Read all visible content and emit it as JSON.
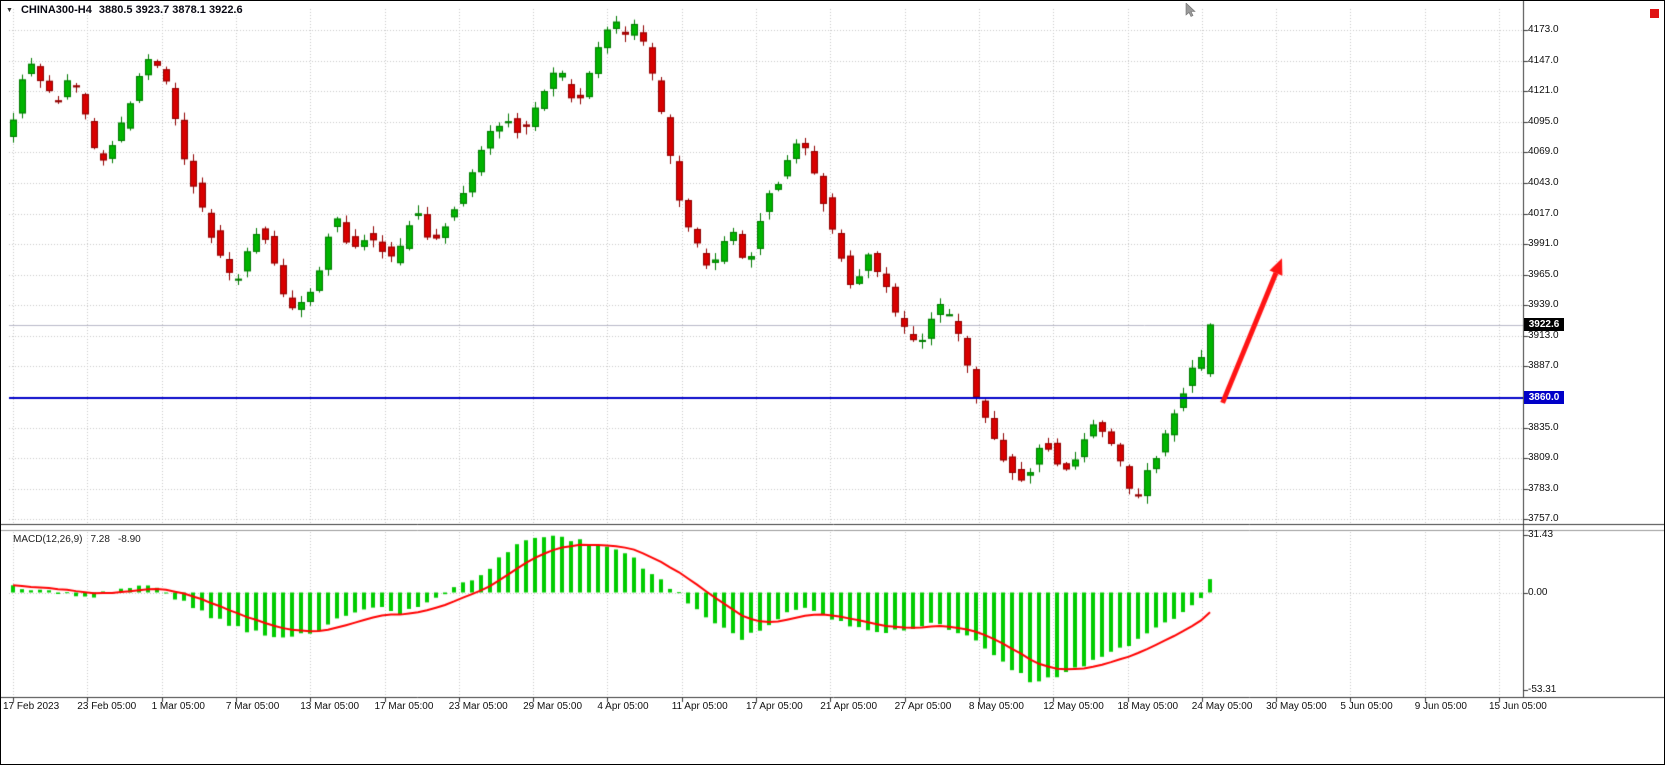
{
  "header": {
    "dropdown_icon": "▼",
    "symbol": "CHINA300-H4",
    "ohlc_text": "3880.5 3923.7 3878.1 3922.6"
  },
  "price_axis": {
    "current_price": "3922.6",
    "hline_price": "3860.0",
    "ticks": [
      "4173.0",
      "4147.0",
      "4121.0",
      "4095.0",
      "4069.0",
      "4043.0",
      "4017.0",
      "3991.0",
      "3965.0",
      "3939.0",
      "3913.0",
      "3887.0",
      "3835.0",
      "3809.0",
      "3783.0",
      "3757.0"
    ]
  },
  "time_axis": {
    "labels": [
      "17 Feb 2023",
      "23 Feb 05:00",
      "1 Mar 05:00",
      "7 Mar 05:00",
      "13 Mar 05:00",
      "17 Mar 05:00",
      "23 Mar 05:00",
      "29 Mar 05:00",
      "4 Apr 05:00",
      "11 Apr 05:00",
      "17 Apr 05:00",
      "21 Apr 05:00",
      "27 Apr 05:00",
      "8 May 05:00",
      "12 May 05:00",
      "18 May 05:00",
      "24 May 05:00",
      "30 May 05:00",
      "5 Jun 05:00",
      "9 Jun 05:00",
      "15 Jun 05:00"
    ]
  },
  "macd_label": {
    "name": "MACD(12,26,9)",
    "value": "7.28",
    "signal": "-8.90"
  },
  "macd_axis": {
    "ticks": [
      "31.43",
      "0.00",
      "-53.31"
    ]
  },
  "chart_data": {
    "type": "candlestick",
    "symbol": "CHINA300-H4",
    "timeframe": "H4",
    "price_range": [
      3753,
      4191
    ],
    "price_gridlines": [
      3757,
      3783,
      3809,
      3835,
      3861,
      3887,
      3913,
      3939,
      3965,
      3991,
      4017,
      4043,
      4069,
      4095,
      4121,
      4147,
      4173
    ],
    "num_candles": 134,
    "current_candle": {
      "open": 3880.5,
      "high": 3923.7,
      "low": 3878.1,
      "close": 3922.6
    },
    "last_price": 3922.6,
    "support_line": 3860.0,
    "noise_seed": 1337,
    "price_path": [
      [
        0,
        4085
      ],
      [
        2,
        4150
      ],
      [
        5,
        4110
      ],
      [
        7,
        4135
      ],
      [
        10,
        4060
      ],
      [
        12,
        4080
      ],
      [
        15,
        4148
      ],
      [
        17,
        4140
      ],
      [
        20,
        4050
      ],
      [
        23,
        3990
      ],
      [
        25,
        3958
      ],
      [
        28,
        4010
      ],
      [
        31,
        3935
      ],
      [
        34,
        3950
      ],
      [
        36,
        4020
      ],
      [
        38,
        3988
      ],
      [
        40,
        4000
      ],
      [
        43,
        3975
      ],
      [
        45,
        4025
      ],
      [
        47,
        3992
      ],
      [
        49,
        4015
      ],
      [
        51,
        4042
      ],
      [
        53,
        4078
      ],
      [
        55,
        4100
      ],
      [
        57,
        4086
      ],
      [
        59,
        4112
      ],
      [
        61,
        4140
      ],
      [
        63,
        4106
      ],
      [
        65,
        4150
      ],
      [
        67,
        4185
      ],
      [
        68,
        4168
      ],
      [
        70,
        4176
      ],
      [
        72,
        4120
      ],
      [
        74,
        4042
      ],
      [
        76,
        3996
      ],
      [
        78,
        3965
      ],
      [
        80,
        4006
      ],
      [
        82,
        3972
      ],
      [
        84,
        4030
      ],
      [
        86,
        4052
      ],
      [
        88,
        4086
      ],
      [
        90,
        4040
      ],
      [
        92,
        3992
      ],
      [
        94,
        3946
      ],
      [
        95,
        3986
      ],
      [
        97,
        3962
      ],
      [
        99,
        3924
      ],
      [
        101,
        3902
      ],
      [
        103,
        3940
      ],
      [
        105,
        3922
      ],
      [
        107,
        3872
      ],
      [
        109,
        3836
      ],
      [
        111,
        3802
      ],
      [
        113,
        3790
      ],
      [
        115,
        3826
      ],
      [
        117,
        3796
      ],
      [
        119,
        3816
      ],
      [
        121,
        3842
      ],
      [
        123,
        3812
      ],
      [
        125,
        3770
      ],
      [
        127,
        3806
      ],
      [
        129,
        3836
      ],
      [
        131,
        3880
      ],
      [
        133,
        3901
      ]
    ],
    "macd": {
      "params": [
        12,
        26,
        9
      ],
      "last_value": 7.28,
      "last_signal": -8.9,
      "range": [
        -57,
        33
      ],
      "path": [
        [
          0,
          3
        ],
        [
          4,
          1
        ],
        [
          8,
          -3
        ],
        [
          12,
          2
        ],
        [
          15,
          3
        ],
        [
          17,
          0
        ],
        [
          20,
          -8
        ],
        [
          24,
          -18
        ],
        [
          28,
          -23
        ],
        [
          31,
          -25
        ],
        [
          34,
          -20
        ],
        [
          37,
          -12
        ],
        [
          40,
          -7
        ],
        [
          43,
          -11
        ],
        [
          46,
          -5
        ],
        [
          49,
          2
        ],
        [
          52,
          10
        ],
        [
          55,
          22
        ],
        [
          57,
          29
        ],
        [
          60,
          31
        ],
        [
          63,
          28
        ],
        [
          66,
          25
        ],
        [
          69,
          18
        ],
        [
          71,
          10
        ],
        [
          73,
          3
        ],
        [
          75,
          -5
        ],
        [
          78,
          -18
        ],
        [
          81,
          -25
        ],
        [
          84,
          -17
        ],
        [
          86,
          -10
        ],
        [
          88,
          -8
        ],
        [
          90,
          -12
        ],
        [
          93,
          -18
        ],
        [
          96,
          -22
        ],
        [
          99,
          -20
        ],
        [
          102,
          -16
        ],
        [
          105,
          -21
        ],
        [
          108,
          -30
        ],
        [
          111,
          -42
        ],
        [
          113,
          -48
        ],
        [
          116,
          -46
        ],
        [
          119,
          -40
        ],
        [
          122,
          -33
        ],
        [
          125,
          -26
        ],
        [
          128,
          -17
        ],
        [
          130,
          -11
        ],
        [
          132,
          -4
        ],
        [
          133,
          7.28
        ]
      ]
    },
    "annotation_arrow": {
      "from": [
        134.4,
        3856
      ],
      "to": [
        141,
        3979
      ]
    }
  },
  "colors": {
    "bull": "#00b400",
    "bull_border": "#007a00",
    "bear": "#d80000",
    "bear_border": "#8f0000",
    "grid": "#c8c8c8",
    "macd_bar": "#00cc00",
    "macd_signal": "#ff0000",
    "hline": "#0000c8",
    "price_line": "#b8b8c8",
    "arrow": "#ff1414",
    "separator": "#3a3a3a",
    "badge_current_bg": "#000000",
    "badge_hline_bg": "#0000c8"
  }
}
